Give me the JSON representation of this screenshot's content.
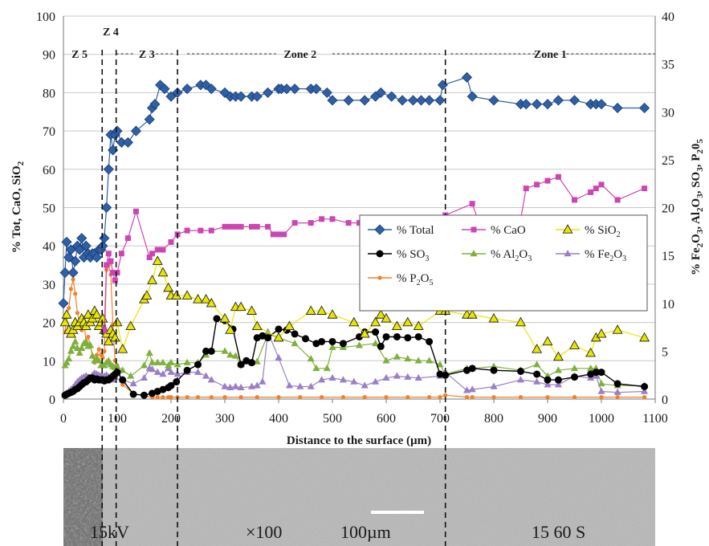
{
  "chart_data": {
    "type": "line",
    "xlabel": "Distance to the surface (µm)",
    "ylabel_left": "% Tot, CaO, SiO2",
    "ylabel_right": "% Fe2O3, Al2O3, SO3, P2O5",
    "xlim": [
      0,
      1100
    ],
    "ylim_left": [
      0,
      100
    ],
    "ylim_right": [
      0,
      40
    ],
    "x_ticks": [
      0,
      100,
      200,
      300,
      400,
      500,
      600,
      700,
      800,
      900,
      1000,
      1100
    ],
    "y_ticks_left": [
      0,
      10,
      20,
      30,
      40,
      50,
      60,
      70,
      80,
      90,
      100
    ],
    "y_ticks_right": [
      0,
      5,
      10,
      15,
      20,
      25,
      30,
      35,
      40
    ],
    "grid": "horizontal",
    "legend_position": "center-right",
    "zones": [
      {
        "label": "Z 5",
        "x": 30
      },
      {
        "label": "Z 4",
        "x": 88
      },
      {
        "label": "Z 3",
        "x": 155
      },
      {
        "label": "Zone 2",
        "x": 440
      },
      {
        "label": "Zone 1",
        "x": 905
      }
    ],
    "zone_boundaries": [
      72,
      98,
      212,
      710
    ],
    "series": [
      {
        "name": "% Total",
        "axis": "left",
        "color": "#2e5fa8",
        "marker": "diamond",
        "x": [
          0,
          3,
          6,
          10,
          14,
          18,
          22,
          26,
          30,
          34,
          38,
          42,
          46,
          50,
          54,
          58,
          62,
          66,
          70,
          73,
          76,
          80,
          84,
          88,
          92,
          96,
          100,
          108,
          120,
          135,
          160,
          165,
          170,
          180,
          188,
          200,
          212,
          230,
          255,
          265,
          275,
          300,
          310,
          320,
          330,
          350,
          360,
          380,
          400,
          405,
          415,
          430,
          460,
          470,
          490,
          500,
          530,
          560,
          580,
          590,
          610,
          630,
          650,
          665,
          680,
          700,
          705,
          750,
          760,
          800,
          850,
          860,
          880,
          900,
          920,
          950,
          980,
          990,
          1000,
          1030,
          1080
        ],
        "y": [
          25,
          33,
          41,
          37,
          39,
          33,
          36,
          40,
          39,
          42,
          37,
          40,
          38,
          37,
          38,
          38,
          37,
          39,
          39,
          40,
          42,
          50,
          60,
          69,
          65,
          69,
          70,
          67,
          67,
          70,
          73,
          76,
          77,
          82,
          81,
          79,
          80,
          81,
          82,
          82,
          81,
          80,
          79,
          79,
          79,
          79,
          79,
          80,
          81,
          81,
          81,
          81,
          81,
          81,
          80,
          78,
          78,
          78,
          79,
          80,
          79,
          78,
          78,
          78,
          78,
          78,
          82,
          84,
          79,
          78,
          77,
          77,
          77,
          77,
          78,
          78,
          77,
          77,
          77,
          76,
          76
        ]
      },
      {
        "name": "% CaO",
        "axis": "left",
        "color": "#cc45b3",
        "marker": "square",
        "x": [
          76,
          80,
          84,
          88,
          92,
          96,
          100,
          108,
          120,
          135,
          160,
          165,
          175,
          185,
          200,
          212,
          230,
          255,
          275,
          300,
          310,
          320,
          330,
          350,
          360,
          380,
          390,
          400,
          410,
          430,
          460,
          480,
          500,
          530,
          550,
          560,
          580,
          600,
          620,
          640,
          660,
          680,
          700,
          710,
          760,
          770,
          800,
          850,
          860,
          880,
          900,
          920,
          950,
          980,
          990,
          1000,
          1030,
          1080
        ],
        "y": [
          18,
          35,
          38,
          36,
          33,
          31,
          33,
          38,
          42,
          49,
          37,
          38,
          39,
          39,
          41,
          43,
          44,
          44,
          44,
          45,
          45,
          45,
          45,
          45,
          45,
          45,
          43,
          43,
          43,
          46,
          46,
          47,
          47,
          46,
          46,
          46,
          46,
          47,
          47,
          46,
          46,
          46,
          46,
          48,
          51,
          47,
          47,
          47,
          55,
          56,
          57,
          58,
          52,
          54,
          55,
          56,
          52,
          55
        ]
      },
      {
        "name": "% SiO2",
        "axis": "left",
        "color": "#e8e600",
        "marker": "triangle",
        "x": [
          3,
          6,
          10,
          14,
          18,
          22,
          26,
          30,
          34,
          38,
          42,
          46,
          50,
          54,
          58,
          62,
          66,
          70,
          73,
          76,
          80,
          84,
          88,
          92,
          96,
          100,
          110,
          125,
          150,
          155,
          165,
          175,
          185,
          195,
          200,
          210,
          230,
          250,
          265,
          275,
          300,
          310,
          320,
          330,
          350,
          360,
          400,
          420,
          460,
          480,
          500,
          540,
          560,
          580,
          590,
          600,
          620,
          640,
          660,
          700,
          710,
          750,
          760,
          800,
          850,
          880,
          900,
          920,
          950,
          980,
          990,
          1000,
          1030,
          1080
        ],
        "y": [
          20,
          22,
          18,
          17,
          18,
          20,
          19,
          20,
          21,
          20,
          19,
          22,
          20,
          21,
          23,
          22,
          19,
          20,
          21,
          18,
          17,
          15,
          18,
          17,
          16,
          20,
          13,
          19,
          26,
          27,
          31,
          36,
          33,
          29,
          27,
          27,
          27,
          26,
          26,
          25,
          21,
          18,
          24,
          24,
          23,
          19,
          16,
          19,
          23,
          23,
          22,
          20,
          17,
          20,
          22,
          21,
          19,
          20,
          19,
          23,
          23,
          22,
          22,
          21,
          20,
          13,
          15,
          11,
          14,
          12,
          16,
          17,
          18,
          16
        ]
      },
      {
        "name": "% SO3",
        "axis": "right",
        "color": "#000000",
        "marker": "circle",
        "x": [
          3,
          6,
          10,
          14,
          18,
          22,
          26,
          30,
          34,
          38,
          42,
          46,
          50,
          54,
          58,
          62,
          66,
          70,
          73,
          76,
          80,
          84,
          88,
          92,
          96,
          100,
          110,
          130,
          150,
          165,
          175,
          185,
          195,
          200,
          210,
          230,
          250,
          265,
          275,
          285,
          300,
          315,
          330,
          340,
          350,
          360,
          370,
          380,
          400,
          415,
          430,
          450,
          470,
          480,
          500,
          520,
          550,
          560,
          580,
          590,
          600,
          620,
          640,
          660,
          680,
          700,
          710,
          750,
          760,
          800,
          850,
          880,
          900,
          920,
          950,
          980,
          990,
          1000,
          1030,
          1080
        ],
        "y": [
          0.4,
          0.5,
          0.6,
          0.7,
          0.8,
          1.0,
          1.1,
          1.3,
          1.5,
          1.7,
          1.8,
          2.0,
          2.2,
          2.2,
          2.0,
          2.1,
          2.0,
          2.0,
          2.0,
          1.9,
          2.0,
          2.0,
          2.2,
          2.4,
          2.6,
          2.8,
          2.0,
          0.5,
          0.4,
          0.6,
          0.8,
          1.0,
          1.2,
          1.4,
          1.8,
          3.0,
          3.6,
          5.0,
          5.0,
          8.4,
          8.2,
          7.3,
          3.6,
          4.0,
          3.8,
          6.4,
          6.6,
          6.4,
          7.3,
          7.2,
          6.8,
          6.3,
          5.8,
          6.0,
          6.0,
          5.8,
          6.5,
          7.0,
          7.0,
          5.5,
          6.5,
          6.5,
          6.4,
          6.5,
          6.0,
          2.6,
          2.5,
          3.0,
          3.2,
          3.0,
          2.9,
          2.6,
          2.0,
          2.0,
          2.3,
          2.6,
          2.8,
          2.8,
          1.6,
          1.3
        ]
      },
      {
        "name": "% Al2O3",
        "axis": "right",
        "color": "#7fb03c",
        "marker": "triangle",
        "x": [
          3,
          6,
          10,
          14,
          18,
          22,
          26,
          30,
          34,
          38,
          42,
          46,
          50,
          54,
          58,
          62,
          66,
          70,
          73,
          76,
          80,
          84,
          88,
          92,
          96,
          100,
          110,
          125,
          150,
          160,
          165,
          175,
          185,
          195,
          200,
          212,
          230,
          250,
          265,
          275,
          300,
          310,
          320,
          330,
          350,
          360,
          380,
          400,
          430,
          460,
          470,
          490,
          500,
          520,
          550,
          580,
          600,
          620,
          640,
          660,
          680,
          700,
          710,
          750,
          760,
          800,
          850,
          880,
          900,
          920,
          950,
          980,
          990,
          1000,
          1030,
          1080
        ],
        "y": [
          3.5,
          3.8,
          4.2,
          5.0,
          5.5,
          6.0,
          5.3,
          4.8,
          5.3,
          5.8,
          6.0,
          5.5,
          5.6,
          4.5,
          4.0,
          4.2,
          4.0,
          3.5,
          3.5,
          3.5,
          3.8,
          4.0,
          3.6,
          3.4,
          3.3,
          3.4,
          3.0,
          2.4,
          3.5,
          4.8,
          3.8,
          3.8,
          3.8,
          3.5,
          3.8,
          3.6,
          3.8,
          3.8,
          4.6,
          5.0,
          5.0,
          4.6,
          4.5,
          3.6,
          3.8,
          3.9,
          6.8,
          6.4,
          5.8,
          4.2,
          3.2,
          3.2,
          5.4,
          5.4,
          5.6,
          5.8,
          4.0,
          4.4,
          4.2,
          4.0,
          4.0,
          3.6,
          2.6,
          3.2,
          3.2,
          3.4,
          3.0,
          3.6,
          2.4,
          3.0,
          3.2,
          3.2,
          3.2,
          1.6,
          1.4,
          1.4
        ]
      },
      {
        "name": "% Fe2O3",
        "axis": "right",
        "color": "#9a7fc6",
        "marker": "triangle",
        "x": [
          3,
          6,
          10,
          14,
          18,
          22,
          26,
          30,
          34,
          38,
          42,
          46,
          50,
          54,
          58,
          62,
          66,
          70,
          73,
          76,
          80,
          84,
          88,
          92,
          96,
          100,
          110,
          130,
          150,
          160,
          165,
          175,
          185,
          195,
          200,
          212,
          230,
          250,
          265,
          275,
          300,
          310,
          320,
          330,
          350,
          360,
          370,
          380,
          400,
          420,
          440,
          460,
          480,
          500,
          520,
          540,
          560,
          580,
          600,
          620,
          640,
          660,
          700,
          710,
          750,
          760,
          800,
          850,
          880,
          900,
          920,
          950,
          980,
          990,
          1000,
          1030,
          1080
        ],
        "y": [
          0.4,
          0.6,
          0.8,
          1.0,
          1.2,
          1.5,
          1.8,
          2.0,
          2.2,
          2.3,
          2.4,
          2.3,
          2.2,
          2.5,
          2.7,
          2.6,
          2.5,
          2.4,
          2.3,
          2.4,
          2.5,
          2.3,
          2.2,
          2.0,
          2.3,
          2.8,
          2.0,
          1.6,
          2.2,
          3.2,
          3.1,
          2.8,
          2.6,
          3.2,
          2.8,
          2.6,
          2.8,
          2.8,
          2.4,
          2.0,
          1.3,
          1.2,
          1.3,
          1.2,
          1.3,
          1.4,
          1.8,
          7.0,
          4.3,
          1.4,
          1.3,
          1.3,
          2.0,
          2.2,
          2.0,
          1.8,
          1.4,
          1.8,
          2.2,
          2.4,
          2.3,
          2.2,
          2.4,
          2.8,
          0.9,
          1.0,
          1.3,
          2.0,
          1.8,
          1.5,
          1.5,
          2.4,
          2.2,
          2.4,
          0.8,
          0.7,
          0.8
        ]
      },
      {
        "name": "% P2O5",
        "axis": "right",
        "color": "#f0822a",
        "marker": "dot",
        "x": [
          3,
          6,
          10,
          14,
          18,
          22,
          26,
          30,
          34,
          38,
          42,
          46,
          50,
          54,
          58,
          62,
          66,
          70,
          73,
          76,
          80,
          84,
          88,
          92,
          96,
          100,
          110,
          130,
          150,
          165,
          175,
          185,
          195,
          200,
          212,
          230,
          250,
          275,
          300,
          330,
          360,
          400,
          440,
          480,
          520,
          560,
          600,
          640,
          680,
          700,
          710,
          750,
          760,
          800,
          850,
          900,
          950,
          1000,
          1030,
          1080
        ],
        "y": [
          7.0,
          8.5,
          9.5,
          11.5,
          12.5,
          11.0,
          9.0,
          8.0,
          7.2,
          8.5,
          5.8,
          6.5,
          5.6,
          4.5,
          3.8,
          4.6,
          5.2,
          4.6,
          4.3,
          5.0,
          13.5,
          14.0,
          13.0,
          7.8,
          4.0,
          3.5,
          1.5,
          0.6,
          0.3,
          0.2,
          0.2,
          0.2,
          0.2,
          0.2,
          0.2,
          0.2,
          0.2,
          0.2,
          0.2,
          0.2,
          0.2,
          0.2,
          0.2,
          0.2,
          0.2,
          0.2,
          0.2,
          0.2,
          0.2,
          0.2,
          0.4,
          0.2,
          0.2,
          0.2,
          0.2,
          0.2,
          0.2,
          0.2,
          0.2,
          0.2
        ]
      }
    ]
  },
  "sem_image": {
    "label": "SEM micrograph",
    "overlay_left": "15kV",
    "overlay_mid": "×100",
    "overlay_scale": "100µm",
    "overlay_right": "15 60 S"
  }
}
